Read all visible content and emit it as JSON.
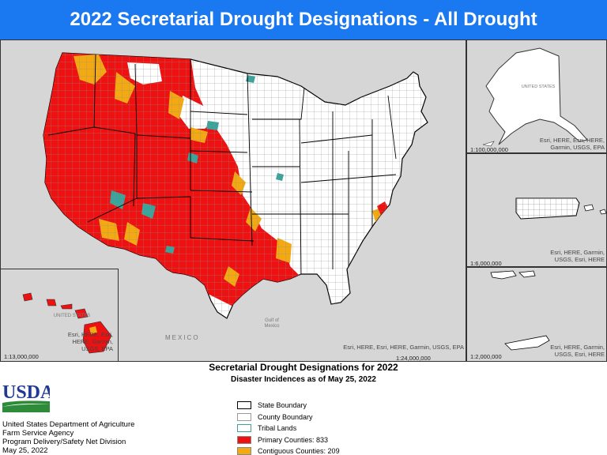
{
  "title": "2022 Secretarial Drought Designations - All Drought",
  "maps": {
    "main": {
      "attribution": "Esri, HERE, Esri, HERE, Garmin, USGS, EPA",
      "scale": "1:24,000,000",
      "labels": {
        "mexico": "MEXICO",
        "gulf": "Gulf of Mexico"
      }
    },
    "alaska": {
      "attribution": "Esri, HERE, Esri, HERE, Garmin, USGS, EPA",
      "scale": "1:100,000,000",
      "country_label": "UNITED STATES"
    },
    "puerto_rico": {
      "attribution": "Esri, HERE, Garmin, USGS, Esri, HERE",
      "scale": "1:6,000,000"
    },
    "virgin_islands": {
      "attribution": "Esri, HERE, Garmin, USGS, Esri, HERE",
      "scale": "1:2,000,000"
    },
    "hawaii": {
      "attribution": "Esri, HERE, Esri, HERE, Garmin, USGS, EPA",
      "scale": "1:13,000,000",
      "country_label": "UNITED STATES"
    }
  },
  "legend": {
    "heading": "Secretarial Drought Designations for 2022",
    "subheading": "Disaster Incidences as of May 25, 2022",
    "items": [
      {
        "label": "State Boundary",
        "fill": "#ffffff",
        "stroke": "#000000"
      },
      {
        "label": "County Boundary",
        "fill": "#ffffff",
        "stroke": "#9a9a9a"
      },
      {
        "label": "Tribal Lands",
        "fill": "#ffffff",
        "stroke": "#3aa39a"
      },
      {
        "label": "Primary Counties: 833",
        "fill": "#ee1111",
        "stroke": "#888888"
      },
      {
        "label": "Contiguous Counties: 209",
        "fill": "#f2a912",
        "stroke": "#888888"
      }
    ]
  },
  "agency": {
    "logo_text": "USDA",
    "lines": [
      "United States Department of Agriculture",
      "Farm Service Agency",
      "Program Delivery/Safety Net Division",
      "May 25, 2022"
    ]
  },
  "colors": {
    "primary": "#ee1111",
    "contiguous": "#f2a912",
    "tribal": "#3aa39a",
    "land": "#ffffff",
    "water": "#d6d6d6",
    "title_bar": "#1a78f0",
    "usda_blue": "#1f3a93",
    "usda_green": "#2e8b3a"
  }
}
